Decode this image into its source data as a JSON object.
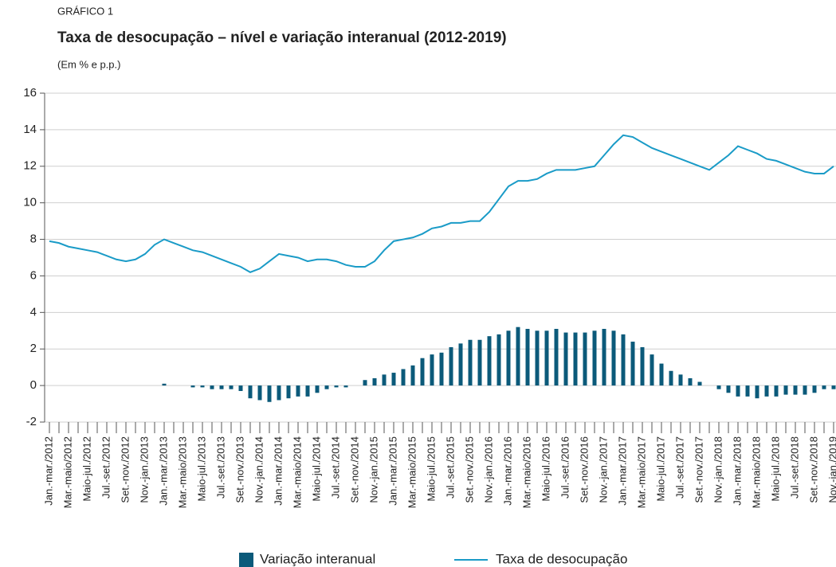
{
  "chart_data": {
    "type": "combo",
    "label": "GRÁFICO 1",
    "title": "Taxa de desocupação – nível e variação interanual (2012-2019)",
    "subtitle": "(Em % e p.p.)",
    "categories": [
      "Jan.-mar./2012",
      null,
      "Mar.-maio/2012",
      null,
      "Maio-jul./2012",
      null,
      "Jul.-set./2012",
      null,
      "Set.-nov./2012",
      null,
      "Nov.-jan./2013",
      null,
      "Jan.-mar./2013",
      null,
      "Mar.-maio/2013",
      null,
      "Maio-jul./2013",
      null,
      "Jul.-set./2013",
      null,
      "Set.-nov./2013",
      null,
      "Nov.-jan./2014",
      null,
      "Jan.-mar./2014",
      null,
      "Mar.-maio/2014",
      null,
      "Maio-jul./2014",
      null,
      "Jul.-set./2014",
      null,
      "Set.-nov./2014",
      null,
      "Nov.-jan./2015",
      null,
      "Jan.-mar./2015",
      null,
      "Mar.-maio/2015",
      null,
      "Maio-jul./2015",
      null,
      "Jul.-set./2015",
      null,
      "Set.-nov./2015",
      null,
      "Nov.-jan./2016",
      null,
      "Jan.-mar./2016",
      null,
      "Mar.-maio/2016",
      null,
      "Maio-jul./2016",
      null,
      "Jul.-set./2016",
      null,
      "Set.-nov./2016",
      null,
      "Nov.-jan./2017",
      null,
      "Jan.-mar./2017",
      null,
      "Mar.-maio/2017",
      null,
      "Maio-jul./2017",
      null,
      "Jul.-set./2017",
      null,
      "Set.-nov./2017",
      null,
      "Nov.-jan./2018",
      null,
      "Jan.-mar./2018",
      null,
      "Mar.-maio/2018",
      null,
      "Maio-jul./2018",
      null,
      "Jul.-set./2018",
      null,
      "Set.-nov./2018",
      null,
      "Nov.-jan./2019"
    ],
    "series": [
      {
        "name": "Variação interanual",
        "type": "bar",
        "color": "#0b5a7a",
        "values": [
          null,
          null,
          null,
          null,
          null,
          null,
          null,
          null,
          null,
          null,
          null,
          null,
          0.1,
          0.0,
          0.0,
          -0.1,
          -0.1,
          -0.2,
          -0.2,
          -0.2,
          -0.3,
          -0.7,
          -0.8,
          -0.9,
          -0.8,
          -0.7,
          -0.6,
          -0.6,
          -0.4,
          -0.2,
          -0.1,
          -0.1,
          0.0,
          0.3,
          0.4,
          0.6,
          0.7,
          0.9,
          1.1,
          1.5,
          1.7,
          1.8,
          2.1,
          2.3,
          2.5,
          2.5,
          2.7,
          2.8,
          3.0,
          3.2,
          3.1,
          3.0,
          3.0,
          3.1,
          2.9,
          2.9,
          2.9,
          3.0,
          3.1,
          3.0,
          2.8,
          2.4,
          2.1,
          1.7,
          1.2,
          0.8,
          0.6,
          0.4,
          0.2,
          0.0,
          -0.2,
          -0.4,
          -0.6,
          -0.6,
          -0.7,
          -0.6,
          -0.6,
          -0.5,
          -0.5,
          -0.5,
          -0.4,
          -0.2,
          -0.2
        ]
      },
      {
        "name": "Taxa de desocupação",
        "type": "line",
        "color": "#1a9bc7",
        "values": [
          7.9,
          7.8,
          7.6,
          7.5,
          7.4,
          7.3,
          7.1,
          6.9,
          6.8,
          6.9,
          7.2,
          7.7,
          8.0,
          7.8,
          7.6,
          7.4,
          7.3,
          7.1,
          6.9,
          6.7,
          6.5,
          6.2,
          6.4,
          6.8,
          7.2,
          7.1,
          7.0,
          6.8,
          6.9,
          6.9,
          6.8,
          6.6,
          6.5,
          6.5,
          6.8,
          7.4,
          7.9,
          8.0,
          8.1,
          8.3,
          8.6,
          8.7,
          8.9,
          8.9,
          9.0,
          9.0,
          9.5,
          10.2,
          10.9,
          11.2,
          11.2,
          11.3,
          11.6,
          11.8,
          11.8,
          11.8,
          11.9,
          12.0,
          12.6,
          13.2,
          13.7,
          13.6,
          13.3,
          13.0,
          12.8,
          12.6,
          12.4,
          12.2,
          12.0,
          11.8,
          12.2,
          12.6,
          13.1,
          12.9,
          12.7,
          12.4,
          12.3,
          12.1,
          11.9,
          11.7,
          11.6,
          11.6,
          12.0
        ]
      }
    ],
    "ylim": [
      -2,
      16
    ],
    "yticks": [
      -2,
      0,
      2,
      4,
      6,
      8,
      10,
      12,
      14,
      16
    ],
    "grid": true
  }
}
